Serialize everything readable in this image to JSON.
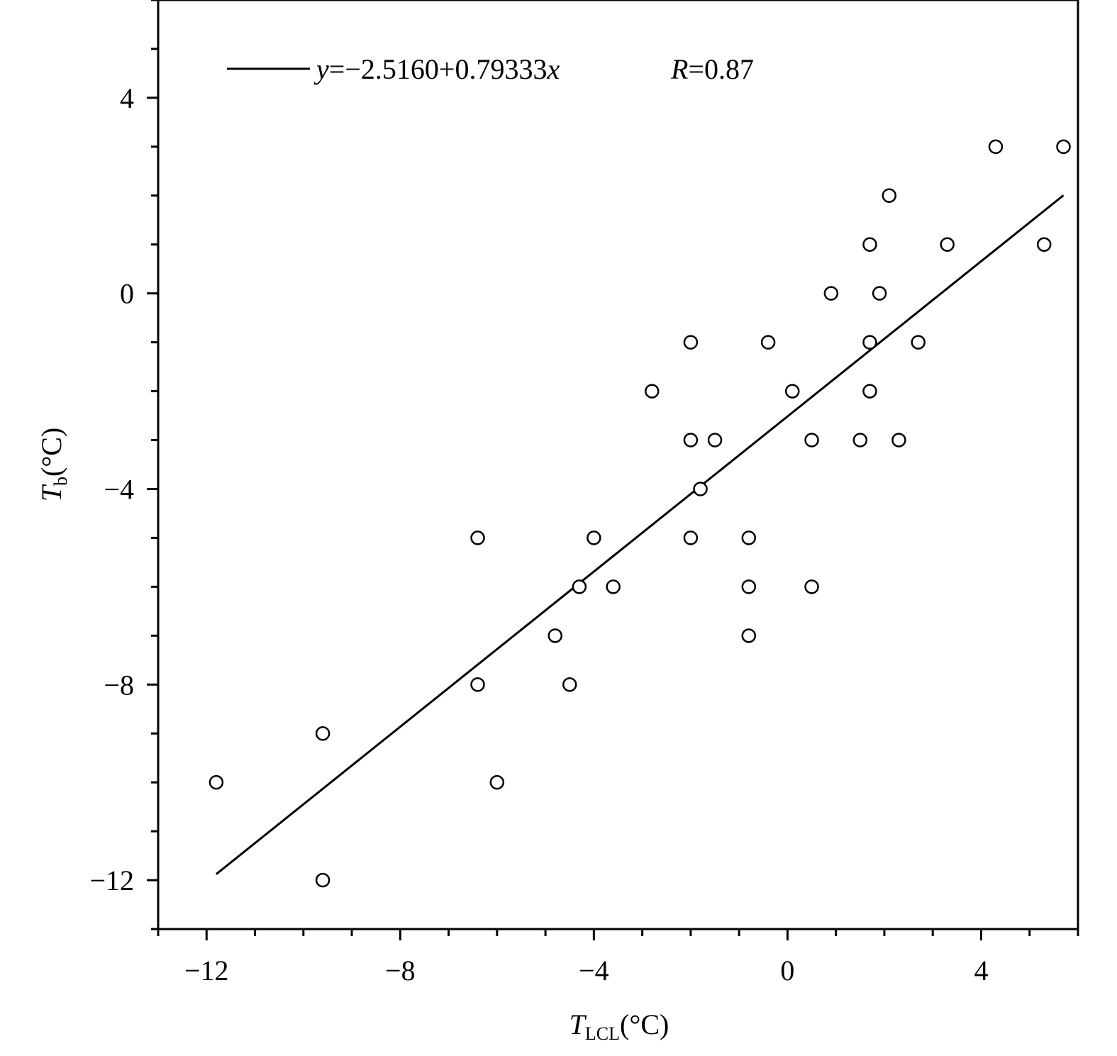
{
  "chart_data": {
    "type": "scatter",
    "title": "",
    "xlabel": {
      "symbol": "T",
      "subscript": "LCL",
      "unit": "(°C)"
    },
    "ylabel": {
      "symbol": "T",
      "subscript": "b",
      "unit": "(°C)"
    },
    "xlim": [
      -13,
      6
    ],
    "ylim": [
      -13,
      6
    ],
    "x_major_ticks": [
      -12,
      -8,
      -4,
      0,
      4
    ],
    "y_major_ticks": [
      -12,
      -8,
      -4,
      0,
      4
    ],
    "x_tick_labels": [
      "−12",
      "−8",
      "−4",
      "0",
      "4"
    ],
    "y_tick_labels": [
      "−12",
      "−8",
      "−4",
      "0",
      "4"
    ],
    "minor_tick_step": 1,
    "grid": false,
    "legend": {
      "position": "top-left",
      "equation_prefix": "y",
      "equation_body": "=−2.5160+0.79333",
      "equation_var": "x",
      "r_symbol": "R",
      "r_value": "=0.87"
    },
    "fit": {
      "intercept": -2.516,
      "slope": 0.79333,
      "x_range": [
        -11.8,
        5.7
      ]
    },
    "points": [
      {
        "x": -11.8,
        "y": -10
      },
      {
        "x": -9.6,
        "y": -9
      },
      {
        "x": -9.6,
        "y": -12
      },
      {
        "x": -6.4,
        "y": -5
      },
      {
        "x": -6.4,
        "y": -8
      },
      {
        "x": -6.0,
        "y": -10
      },
      {
        "x": -4.8,
        "y": -7
      },
      {
        "x": -4.5,
        "y": -8
      },
      {
        "x": -4.3,
        "y": -6
      },
      {
        "x": -4.0,
        "y": -5
      },
      {
        "x": -3.6,
        "y": -6
      },
      {
        "x": -2.8,
        "y": -2
      },
      {
        "x": -2.0,
        "y": -1
      },
      {
        "x": -2.0,
        "y": -3
      },
      {
        "x": -2.0,
        "y": -5
      },
      {
        "x": -1.8,
        "y": -4
      },
      {
        "x": -1.5,
        "y": -3
      },
      {
        "x": -0.8,
        "y": -5
      },
      {
        "x": -0.8,
        "y": -6
      },
      {
        "x": -0.8,
        "y": -7
      },
      {
        "x": -0.4,
        "y": -1
      },
      {
        "x": 0.1,
        "y": -2
      },
      {
        "x": 0.5,
        "y": -3
      },
      {
        "x": 0.5,
        "y": -6
      },
      {
        "x": 0.9,
        "y": 0
      },
      {
        "x": 1.5,
        "y": -3
      },
      {
        "x": 1.7,
        "y": 1
      },
      {
        "x": 1.7,
        "y": -1
      },
      {
        "x": 1.7,
        "y": -2
      },
      {
        "x": 1.9,
        "y": 0
      },
      {
        "x": 2.1,
        "y": 2
      },
      {
        "x": 2.3,
        "y": -3
      },
      {
        "x": 2.7,
        "y": -1
      },
      {
        "x": 3.3,
        "y": 1
      },
      {
        "x": 4.3,
        "y": 3
      },
      {
        "x": 5.3,
        "y": 1
      },
      {
        "x": 5.7,
        "y": 3
      }
    ]
  }
}
